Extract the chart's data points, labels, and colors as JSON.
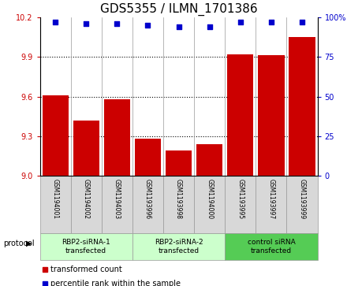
{
  "title": "GDS5355 / ILMN_1701386",
  "samples": [
    "GSM1194001",
    "GSM1194002",
    "GSM1194003",
    "GSM1193996",
    "GSM1193998",
    "GSM1194000",
    "GSM1193995",
    "GSM1193997",
    "GSM1193999"
  ],
  "bar_values": [
    9.61,
    9.42,
    9.58,
    9.28,
    9.19,
    9.24,
    9.92,
    9.91,
    10.05
  ],
  "percentile_values": [
    97,
    96,
    96,
    95,
    94,
    94,
    97,
    97,
    97
  ],
  "ylim_left": [
    9.0,
    10.2
  ],
  "ylim_right": [
    0,
    100
  ],
  "yticks_left": [
    9.0,
    9.3,
    9.6,
    9.9,
    10.2
  ],
  "yticks_right": [
    0,
    25,
    50,
    75,
    100
  ],
  "bar_color": "#cc0000",
  "scatter_color": "#0000cc",
  "groups": [
    {
      "label": "RBP2-siRNA-1\ntransfected",
      "start": 0,
      "end": 3,
      "color": "#ccffcc"
    },
    {
      "label": "RBP2-siRNA-2\ntransfected",
      "start": 3,
      "end": 6,
      "color": "#ccffcc"
    },
    {
      "label": "control siRNA\ntransfected",
      "start": 6,
      "end": 9,
      "color": "#55cc55"
    }
  ],
  "protocol_label": "protocol",
  "legend_bar_label": "transformed count",
  "legend_scatter_label": "percentile rank within the sample",
  "plot_bg": "#ffffff",
  "grid_color": "#000000",
  "title_fontsize": 11,
  "tick_fontsize": 7,
  "sample_fontsize": 5.5,
  "group_fontsize": 6.5,
  "legend_fontsize": 7
}
